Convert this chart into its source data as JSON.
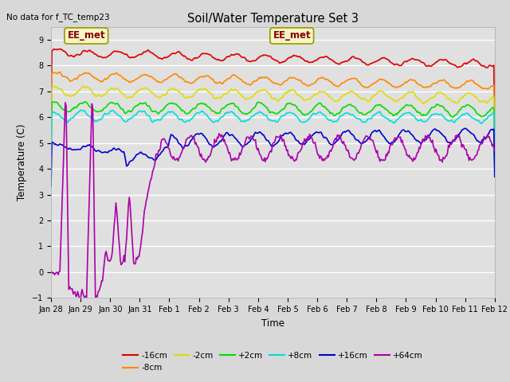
{
  "title": "Soil/Water Temperature Set 3",
  "no_data_text": "No data for f_TC_temp23",
  "xlabel": "Time",
  "ylabel": "Temperature (C)",
  "ylim": [
    -1.0,
    9.5
  ],
  "yticks": [
    -1.0,
    0.0,
    1.0,
    2.0,
    3.0,
    4.0,
    5.0,
    6.0,
    7.0,
    8.0,
    9.0
  ],
  "annotation_text": "EE_met",
  "series_colors": {
    "-16cm": "#dd0000",
    "-8cm": "#ff8800",
    "-2cm": "#dddd00",
    "+2cm": "#00dd00",
    "+8cm": "#00dddd",
    "+16cm": "#0000cc",
    "+64cm": "#aa00aa"
  },
  "bg_color": "#e0e0e0",
  "grid_color": "#ffffff",
  "n_points": 500,
  "fig_width": 6.4,
  "fig_height": 4.8,
  "dpi": 100
}
